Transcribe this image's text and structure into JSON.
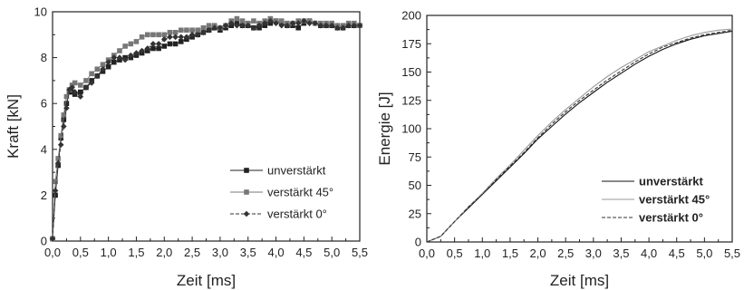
{
  "chart_data": [
    {
      "type": "line",
      "xlabel": "Zeit [ms]",
      "ylabel": "Kraft [kN]",
      "xlim": [
        0,
        5.5
      ],
      "ylim": [
        0,
        10
      ],
      "x_ticks": [
        "0,0",
        "0,5",
        "1,0",
        "1,5",
        "2,0",
        "2,5",
        "3,0",
        "3,5",
        "4,0",
        "4,5",
        "5,0",
        "5,5"
      ],
      "y_ticks": [
        "0",
        "2",
        "4",
        "6",
        "8",
        "10"
      ],
      "legend_position": "bottom-right",
      "series": [
        {
          "name": "unverstärkt",
          "color": "#222222",
          "marker": "square",
          "dash": "solid",
          "x": [
            0.0,
            0.05,
            0.1,
            0.15,
            0.2,
            0.25,
            0.3,
            0.35,
            0.4,
            0.5,
            0.6,
            0.7,
            0.8,
            0.9,
            1.0,
            1.1,
            1.2,
            1.3,
            1.4,
            1.5,
            1.6,
            1.7,
            1.8,
            1.9,
            2.0,
            2.1,
            2.2,
            2.3,
            2.4,
            2.5,
            2.6,
            2.7,
            2.8,
            2.9,
            3.0,
            3.1,
            3.2,
            3.3,
            3.4,
            3.5,
            3.6,
            3.7,
            3.8,
            3.9,
            4.0,
            4.1,
            4.2,
            4.3,
            4.4,
            4.5,
            4.6,
            4.7,
            4.8,
            4.9,
            5.0,
            5.1,
            5.2,
            5.3,
            5.4,
            5.5
          ],
          "values": [
            0.1,
            2.0,
            3.3,
            4.5,
            5.3,
            6.0,
            6.5,
            6.5,
            6.4,
            6.5,
            6.7,
            7.0,
            7.2,
            7.4,
            7.6,
            7.8,
            7.9,
            8.0,
            8.0,
            8.1,
            8.2,
            8.3,
            8.4,
            8.4,
            8.5,
            8.6,
            8.6,
            8.7,
            8.8,
            8.9,
            9.0,
            9.1,
            9.2,
            9.3,
            9.2,
            9.3,
            9.4,
            9.5,
            9.4,
            9.4,
            9.3,
            9.3,
            9.4,
            9.5,
            9.6,
            9.5,
            9.4,
            9.4,
            9.3,
            9.5,
            9.6,
            9.5,
            9.4,
            9.4,
            9.4,
            9.3,
            9.3,
            9.4,
            9.4,
            9.4
          ]
        },
        {
          "name": "verstärkt 45°",
          "color": "#777777",
          "marker": "square",
          "dash": "solid",
          "x": [
            0.0,
            0.05,
            0.1,
            0.15,
            0.2,
            0.25,
            0.3,
            0.35,
            0.4,
            0.5,
            0.6,
            0.7,
            0.8,
            0.9,
            1.0,
            1.1,
            1.2,
            1.3,
            1.4,
            1.5,
            1.6,
            1.7,
            1.8,
            1.9,
            2.0,
            2.1,
            2.2,
            2.3,
            2.4,
            2.5,
            2.6,
            2.7,
            2.8,
            2.9,
            3.0,
            3.1,
            3.2,
            3.3,
            3.4,
            3.5,
            3.6,
            3.7,
            3.8,
            3.9,
            4.0,
            4.1,
            4.2,
            4.3,
            4.4,
            4.5,
            4.6,
            4.7,
            4.8,
            4.9,
            5.0,
            5.1,
            5.2,
            5.3,
            5.4,
            5.5
          ],
          "values": [
            0.1,
            2.6,
            3.6,
            4.6,
            5.5,
            6.3,
            6.6,
            6.8,
            6.9,
            6.8,
            7.0,
            7.3,
            7.5,
            7.7,
            7.9,
            8.1,
            8.3,
            8.5,
            8.6,
            8.7,
            8.9,
            9.0,
            9.0,
            9.0,
            9.0,
            9.1,
            9.1,
            9.2,
            9.2,
            9.2,
            9.2,
            9.3,
            9.4,
            9.4,
            9.3,
            9.4,
            9.6,
            9.7,
            9.6,
            9.5,
            9.6,
            9.5,
            9.6,
            9.7,
            9.6,
            9.6,
            9.5,
            9.5,
            9.6,
            9.6,
            9.6,
            9.5,
            9.5,
            9.5,
            9.5,
            9.4,
            9.4,
            9.5,
            9.5,
            9.4
          ]
        },
        {
          "name": "verstärkt 0°",
          "color": "#333333",
          "marker": "diamond",
          "dash": "dashed",
          "x": [
            0.0,
            0.05,
            0.1,
            0.15,
            0.2,
            0.25,
            0.3,
            0.35,
            0.4,
            0.5,
            0.6,
            0.7,
            0.8,
            0.9,
            1.0,
            1.1,
            1.2,
            1.3,
            1.4,
            1.5,
            1.6,
            1.7,
            1.8,
            1.9,
            2.0,
            2.1,
            2.2,
            2.3,
            2.4,
            2.5,
            2.6,
            2.7,
            2.8,
            2.9,
            3.0,
            3.1,
            3.2,
            3.3,
            3.4,
            3.5,
            3.6,
            3.7,
            3.8,
            3.9,
            4.0,
            4.1,
            4.2,
            4.3,
            4.4,
            4.5,
            4.6,
            4.7,
            4.8,
            4.9,
            5.0,
            5.1,
            5.2,
            5.3,
            5.4,
            5.5
          ],
          "values": [
            0.1,
            2.2,
            3.4,
            4.2,
            5.0,
            5.8,
            6.6,
            6.7,
            6.5,
            6.3,
            6.7,
            6.9,
            7.2,
            7.5,
            7.8,
            8.0,
            8.0,
            7.9,
            8.1,
            8.2,
            8.3,
            8.4,
            8.6,
            8.6,
            8.8,
            8.9,
            8.9,
            8.9,
            8.9,
            9.0,
            9.0,
            9.1,
            9.2,
            9.3,
            9.3,
            9.4,
            9.5,
            9.4,
            9.4,
            9.4,
            9.3,
            9.4,
            9.5,
            9.6,
            9.5,
            9.4,
            9.4,
            9.5,
            9.5,
            9.6,
            9.5,
            9.5,
            9.4,
            9.4,
            9.4,
            9.3,
            9.3,
            9.4,
            9.4,
            9.4
          ]
        }
      ]
    },
    {
      "type": "line",
      "xlabel": "Zeit [ms]",
      "ylabel": "Energie [J]",
      "xlim": [
        0,
        5.5
      ],
      "ylim": [
        0,
        200
      ],
      "x_ticks": [
        "0,0",
        "0,5",
        "1,0",
        "1,5",
        "2,0",
        "2,5",
        "3,0",
        "3,5",
        "4,0",
        "4,5",
        "5,0",
        "5,5"
      ],
      "y_ticks": [
        "0",
        "25",
        "50",
        "75",
        "100",
        "125",
        "150",
        "175",
        "200"
      ],
      "legend_position": "bottom-right",
      "series": [
        {
          "name": "unverstärkt",
          "color": "#111111",
          "dash": "solid",
          "x": [
            0.0,
            0.25,
            0.5,
            0.75,
            1.0,
            1.25,
            1.5,
            1.75,
            2.0,
            2.25,
            2.5,
            2.75,
            3.0,
            3.25,
            3.5,
            3.75,
            4.0,
            4.25,
            4.5,
            4.75,
            5.0,
            5.25,
            5.5
          ],
          "values": [
            0,
            5,
            18,
            30,
            42,
            54,
            66,
            78,
            91,
            102,
            113,
            123,
            132,
            141,
            149,
            157,
            164,
            170,
            175,
            179,
            182,
            184,
            186
          ]
        },
        {
          "name": "verstärkt 45°",
          "color": "#9a9a9a",
          "dash": "solid",
          "x": [
            0.0,
            0.25,
            0.5,
            0.75,
            1.0,
            1.25,
            1.5,
            1.75,
            2.0,
            2.25,
            2.5,
            2.75,
            3.0,
            3.25,
            3.5,
            3.75,
            4.0,
            4.25,
            4.5,
            4.75,
            5.0,
            5.25,
            5.5
          ],
          "values": [
            0,
            5,
            18,
            31,
            43,
            56,
            68,
            81,
            94,
            106,
            117,
            127,
            137,
            146,
            154,
            161,
            168,
            173,
            178,
            182,
            185,
            187,
            188
          ]
        },
        {
          "name": "verstärkt 0°",
          "color": "#333333",
          "dash": "dashed",
          "x": [
            0.0,
            0.25,
            0.5,
            0.75,
            1.0,
            1.25,
            1.5,
            1.75,
            2.0,
            2.25,
            2.5,
            2.75,
            3.0,
            3.25,
            3.5,
            3.75,
            4.0,
            4.25,
            4.5,
            4.75,
            5.0,
            5.25,
            5.5
          ],
          "values": [
            0,
            5,
            18,
            31,
            42,
            55,
            67,
            79,
            92,
            104,
            115,
            125,
            134,
            143,
            151,
            159,
            166,
            172,
            176,
            180,
            183,
            185,
            187
          ]
        }
      ]
    }
  ]
}
